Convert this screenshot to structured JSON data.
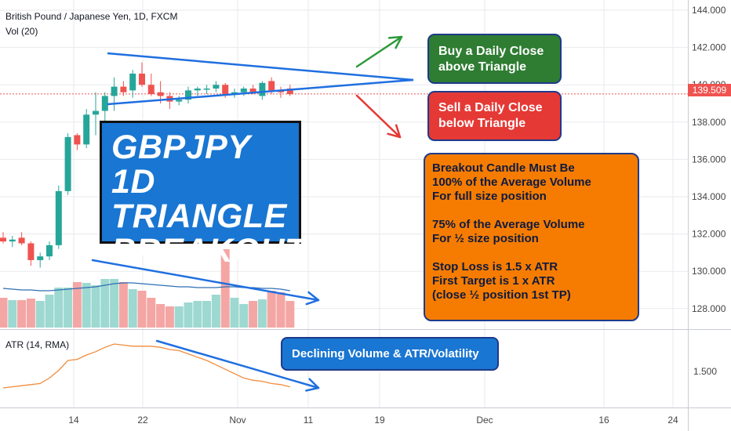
{
  "header": {
    "symbol_title": "British Pound / Japanese Yen, 1D, FXCM",
    "volume_label": "Vol (20)",
    "atr_label": "ATR (14, RMA)"
  },
  "price_tag": "139.509",
  "callouts": {
    "buy": [
      "Buy a Daily Close",
      "above Triangle"
    ],
    "sell": [
      "Sell a Daily Close",
      "below Triangle"
    ],
    "title": [
      "GBPJPY 1D",
      "TRIANGLE",
      "BREAKOUT"
    ],
    "rules": [
      "Breakout Candle Must Be",
      "100% of the Average Volume",
      "For full size position",
      "",
      "75% of the Average Volume",
      "For ½ size position",
      "",
      "Stop Loss is 1.5 x ATR",
      "First Target is 1 x ATR",
      "(close ½ position 1st TP)"
    ],
    "volume_note": "Declining Volume & ATR/Volatility"
  },
  "colors": {
    "up": "#26a69a",
    "down": "#ef5350",
    "vol_up": "#9dd8d1",
    "vol_down": "#f4a6a4",
    "vol_ma": "#2f6fb5",
    "atr_line": "#f08c3c",
    "triangle": "#1f6fe0",
    "buy_arrow": "#2e9a3a",
    "sell_arrow": "#e53935",
    "trend_arrow": "#1f6fe0",
    "grid": "#e8eaee",
    "axis_text": "#444",
    "last_price_line": "#ef5350"
  },
  "chart_data": [
    {
      "type": "candlestick",
      "title": "British Pound / Japanese Yen, 1D, FXCM",
      "x_ticks": [
        "14",
        "22",
        "Nov",
        "11",
        "19",
        "Dec",
        "16",
        "24"
      ],
      "y_ticks": [
        "128.000",
        "130.000",
        "132.000",
        "134.000",
        "136.000",
        "138.000",
        "140.000",
        "142.000",
        "144.000"
      ],
      "ylim": [
        126.5,
        144.5
      ],
      "last_price": 139.509,
      "candles": [
        {
          "o": 131.8,
          "h": 132.1,
          "l": 131.5,
          "c": 131.6
        },
        {
          "o": 131.6,
          "h": 131.9,
          "l": 131.3,
          "c": 131.7
        },
        {
          "o": 131.8,
          "h": 132.1,
          "l": 131.4,
          "c": 131.5
        },
        {
          "o": 131.5,
          "h": 131.6,
          "l": 130.3,
          "c": 130.6
        },
        {
          "o": 130.6,
          "h": 131.0,
          "l": 130.2,
          "c": 130.8
        },
        {
          "o": 130.8,
          "h": 131.6,
          "l": 130.6,
          "c": 131.4
        },
        {
          "o": 131.4,
          "h": 134.6,
          "l": 131.2,
          "c": 134.3
        },
        {
          "o": 134.3,
          "h": 137.4,
          "l": 134.1,
          "c": 137.2
        },
        {
          "o": 137.3,
          "h": 137.4,
          "l": 136.5,
          "c": 136.8
        },
        {
          "o": 136.8,
          "h": 138.7,
          "l": 136.6,
          "c": 138.4
        },
        {
          "o": 138.4,
          "h": 139.6,
          "l": 137.3,
          "c": 138.6
        },
        {
          "o": 138.6,
          "h": 139.6,
          "l": 137.6,
          "c": 139.4
        },
        {
          "o": 139.4,
          "h": 140.4,
          "l": 138.6,
          "c": 139.9
        },
        {
          "o": 139.9,
          "h": 140.2,
          "l": 139.4,
          "c": 139.6
        },
        {
          "o": 139.7,
          "h": 140.8,
          "l": 139.3,
          "c": 140.6
        },
        {
          "o": 140.6,
          "h": 141.2,
          "l": 139.9,
          "c": 140.0
        },
        {
          "o": 140.0,
          "h": 140.6,
          "l": 139.4,
          "c": 139.5
        },
        {
          "o": 139.6,
          "h": 140.2,
          "l": 139.0,
          "c": 139.4
        },
        {
          "o": 139.4,
          "h": 139.6,
          "l": 138.7,
          "c": 139.1
        },
        {
          "o": 139.1,
          "h": 139.4,
          "l": 138.9,
          "c": 139.2
        },
        {
          "o": 139.2,
          "h": 139.9,
          "l": 139.0,
          "c": 139.7
        },
        {
          "o": 139.7,
          "h": 139.9,
          "l": 139.4,
          "c": 139.8
        },
        {
          "o": 139.8,
          "h": 140.0,
          "l": 139.5,
          "c": 139.8
        },
        {
          "o": 139.8,
          "h": 140.2,
          "l": 139.6,
          "c": 140.0
        },
        {
          "o": 140.0,
          "h": 140.1,
          "l": 139.3,
          "c": 139.5
        },
        {
          "o": 139.5,
          "h": 139.8,
          "l": 139.3,
          "c": 139.6
        },
        {
          "o": 139.6,
          "h": 139.9,
          "l": 139.4,
          "c": 139.8
        },
        {
          "o": 139.8,
          "h": 140.0,
          "l": 139.5,
          "c": 139.6
        },
        {
          "o": 139.4,
          "h": 140.2,
          "l": 139.2,
          "c": 140.1
        },
        {
          "o": 140.2,
          "h": 140.4,
          "l": 139.5,
          "c": 139.7
        },
        {
          "o": 139.7,
          "h": 139.9,
          "l": 139.3,
          "c": 139.6
        },
        {
          "o": 139.8,
          "h": 140.0,
          "l": 139.4,
          "c": 139.5
        }
      ],
      "volume": [
        0.38,
        0.35,
        0.35,
        0.37,
        0.34,
        0.42,
        0.51,
        0.51,
        0.58,
        0.57,
        0.54,
        0.62,
        0.62,
        0.58,
        0.49,
        0.47,
        0.38,
        0.3,
        0.27,
        0.27,
        0.32,
        0.34,
        0.34,
        0.42,
        1.0,
        0.38,
        0.3,
        0.34,
        0.36,
        0.47,
        0.45,
        0.34
      ],
      "volume_ma": [
        0.5,
        0.49,
        0.48,
        0.48,
        0.47,
        0.47,
        0.48,
        0.49,
        0.5,
        0.51,
        0.52,
        0.54,
        0.56,
        0.57,
        0.57,
        0.56,
        0.55,
        0.54,
        0.53,
        0.52,
        0.52,
        0.51,
        0.51,
        0.51,
        0.52,
        0.52,
        0.51,
        0.51,
        0.5,
        0.5,
        0.49,
        0.47
      ]
    },
    {
      "type": "line",
      "title": "ATR (14, RMA)",
      "y_ticks": [
        "1.500"
      ],
      "ylim": [
        1.31,
        1.92
      ],
      "series": [
        {
          "name": "ATR (14, RMA)",
          "values": [
            1.35,
            1.36,
            1.37,
            1.38,
            1.39,
            1.44,
            1.51,
            1.6,
            1.61,
            1.65,
            1.68,
            1.72,
            1.75,
            1.74,
            1.73,
            1.73,
            1.73,
            1.72,
            1.7,
            1.69,
            1.66,
            1.63,
            1.6,
            1.56,
            1.52,
            1.48,
            1.44,
            1.42,
            1.41,
            1.39,
            1.38,
            1.36
          ]
        }
      ]
    }
  ]
}
